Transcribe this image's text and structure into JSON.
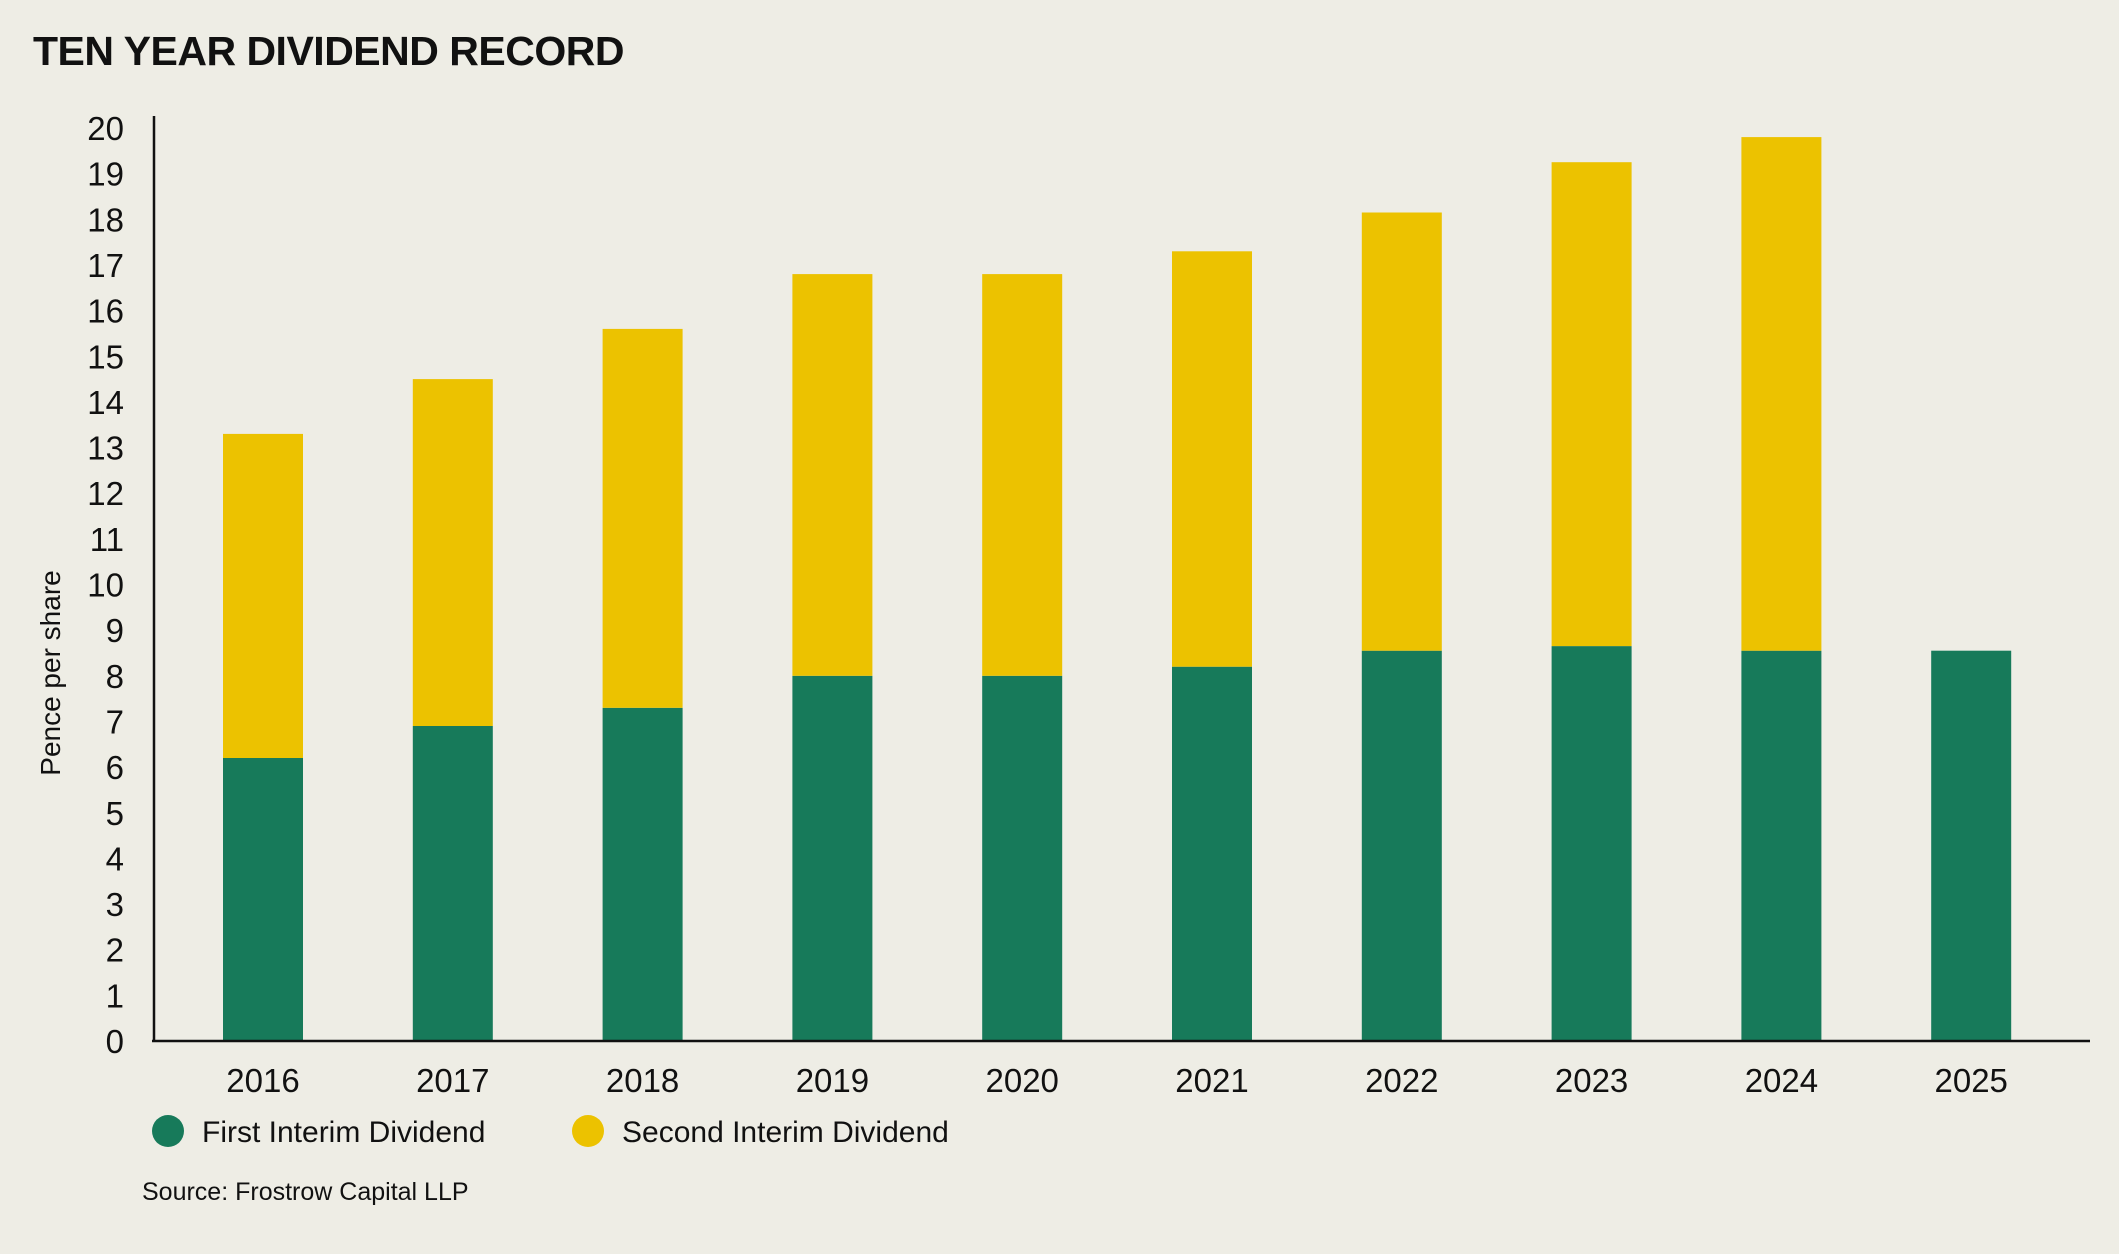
{
  "title": "TEN YEAR DIVIDEND RECORD",
  "source": "Source: Frostrow Capital LLP",
  "chart_data": {
    "type": "bar",
    "stacked": true,
    "categories": [
      "2016",
      "2017",
      "2018",
      "2019",
      "2020",
      "2021",
      "2022",
      "2023",
      "2024",
      "2025"
    ],
    "series": [
      {
        "name": "First Interim Dividend",
        "color": "#177a5a",
        "values": [
          6.2,
          6.9,
          7.3,
          8.0,
          8.0,
          8.2,
          8.55,
          8.65,
          8.55,
          8.55
        ]
      },
      {
        "name": "Second Interim Dividend",
        "color": "#ecc200",
        "values": [
          7.1,
          7.6,
          8.3,
          8.8,
          8.8,
          9.1,
          9.6,
          10.6,
          11.25,
          0
        ]
      }
    ],
    "ylabel": "Pence per share",
    "xlabel": "",
    "ylim": [
      0,
      20
    ],
    "yticks": [
      "0",
      "1",
      "2",
      "3",
      "4",
      "5",
      "6",
      "7",
      "8",
      "9",
      "10",
      "11",
      "12",
      "13",
      "14",
      "15",
      "16",
      "17",
      "18",
      "19",
      "20"
    ],
    "grid": false,
    "legend": "bottom-left"
  }
}
